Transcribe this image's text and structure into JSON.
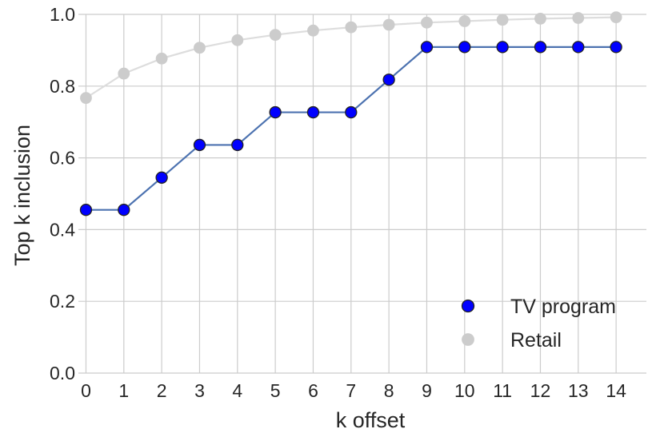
{
  "chart_data": {
    "type": "line",
    "title": "",
    "xlabel": "k offset",
    "ylabel": "Top k inclusion",
    "x": [
      0,
      1,
      2,
      3,
      4,
      5,
      6,
      7,
      8,
      9,
      10,
      11,
      12,
      13,
      14
    ],
    "xlim": [
      -0.2,
      14.8
    ],
    "ylim": [
      0,
      1.0
    ],
    "x_ticks": [
      "0",
      "1",
      "2",
      "3",
      "4",
      "5",
      "6",
      "7",
      "8",
      "9",
      "10",
      "11",
      "12",
      "13",
      "14"
    ],
    "y_ticks": [
      "0.0",
      "0.2",
      "0.4",
      "0.6",
      "0.8",
      "1.0"
    ],
    "y_tick_values": [
      0,
      0.2,
      0.4,
      0.6,
      0.8,
      1.0
    ],
    "grid": true,
    "legend_position": "lower-right",
    "series": [
      {
        "name": "TV program",
        "values": [
          0.455,
          0.455,
          0.545,
          0.636,
          0.636,
          0.727,
          0.727,
          0.727,
          0.818,
          0.909,
          0.909,
          0.909,
          0.909,
          0.909,
          0.909
        ],
        "line_color": "#4c72b0",
        "marker_color": "#0000ff",
        "marker_edge": "#222222"
      },
      {
        "name": "Retail",
        "values": [
          0.767,
          0.835,
          0.877,
          0.907,
          0.928,
          0.943,
          0.955,
          0.964,
          0.971,
          0.977,
          0.981,
          0.985,
          0.988,
          0.99,
          0.992
        ],
        "line_color": "#dddddd",
        "marker_color": "#cccccc",
        "marker_edge": "#cccccc"
      }
    ]
  }
}
